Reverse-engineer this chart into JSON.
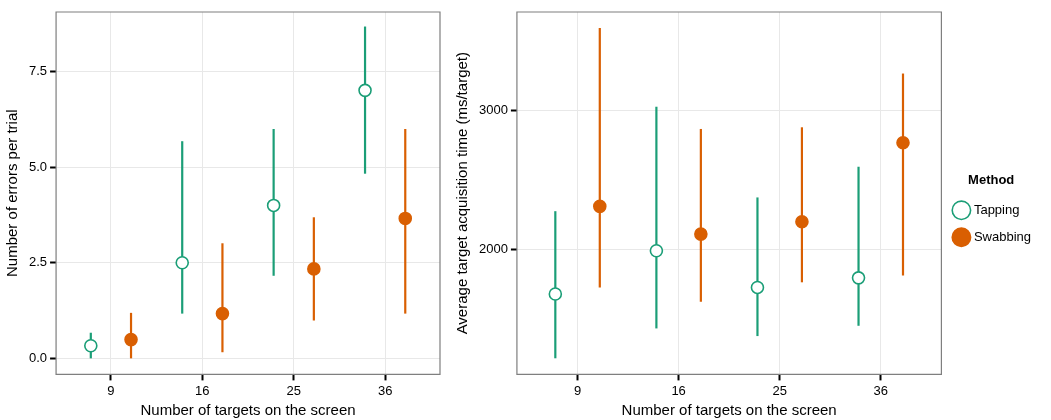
{
  "chart_data": [
    {
      "type": "scatter",
      "xlabel": "Number of targets on the screen",
      "ylabel": "Number of errors per trial",
      "categories": [
        "9",
        "16",
        "25",
        "36"
      ],
      "ylim": [
        -0.42,
        9.06
      ],
      "yticks": [
        {
          "value": 0,
          "label": "0.0"
        },
        {
          "value": 2.5,
          "label": "2.5"
        },
        {
          "value": 5,
          "label": "5.0"
        },
        {
          "value": 7.5,
          "label": "7.5"
        }
      ],
      "grid": true,
      "legend": false,
      "marker": "circle",
      "series": [
        {
          "color": "#1b9e77",
          "values": [
            0.33,
            2.5,
            4.0,
            7.01
          ],
          "errors": [
            [
              0.0,
              0.67
            ],
            [
              1.17,
              5.68
            ],
            [
              2.16,
              6.0
            ],
            [
              4.83,
              8.68
            ]
          ]
        },
        {
          "color": "#d95f02",
          "values": [
            0.49,
            1.17,
            2.34,
            3.66
          ],
          "errors": [
            [
              0.0,
              1.19
            ],
            [
              0.16,
              3.01
            ],
            [
              0.99,
              3.69
            ],
            [
              1.17,
              6.0
            ]
          ]
        }
      ]
    },
    {
      "type": "scatter",
      "xlabel": "Number of targets on the screen",
      "ylabel": "Average target acquisition time (ms/target)",
      "legend_title": "Method",
      "categories": [
        "9",
        "16",
        "25",
        "36"
      ],
      "ylim": [
        1098,
        3707
      ],
      "yticks": [
        2000,
        3000
      ],
      "grid": true,
      "legend": "right",
      "marker": "circle",
      "series": [
        {
          "name": "Tapping",
          "color": "#1b9e77",
          "values": [
            1677,
            1988,
            1724,
            1793
          ],
          "errors": [
            [
              1214,
              2273
            ],
            [
              1429,
              3025
            ],
            [
              1374,
              2372
            ],
            [
              1448,
              2593
            ]
          ]
        },
        {
          "name": "Swabbing",
          "color": "#d95f02",
          "values": [
            2308,
            2108,
            2197,
            2766
          ],
          "errors": [
            [
              1724,
              3591
            ],
            [
              1621,
              2865
            ],
            [
              1761,
              2877
            ],
            [
              1810,
              3264
            ]
          ]
        }
      ]
    }
  ]
}
